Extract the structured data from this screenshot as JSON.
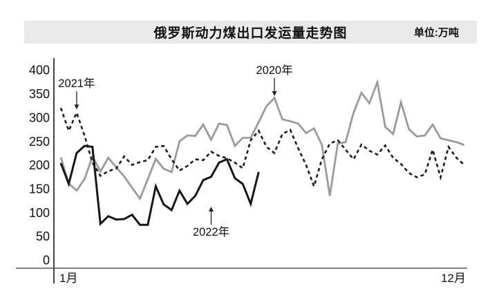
{
  "header": {
    "title": "俄罗斯动力煤出口发运量走势图",
    "unit_label": "单位:万吨"
  },
  "chart_data": {
    "type": "line",
    "title": "俄罗斯动力煤出口发运量走势图",
    "unit": "万吨",
    "x_axis": {
      "start_label": "1月",
      "end_label": "12月",
      "points_per_year": 52,
      "grid": false
    },
    "y_axis": {
      "ticks": [
        400,
        350,
        300,
        250,
        200,
        150,
        100,
        50,
        0
      ],
      "range": [
        0,
        400
      ],
      "grid": false
    },
    "series": [
      {
        "name": "2020年",
        "style": "solid",
        "color": "#9a9a9a",
        "width": 2.8,
        "values": [
          216,
          161,
          146,
          170,
          218,
          186,
          215,
          195,
          176,
          152,
          129,
          170,
          213,
          192,
          185,
          250,
          262,
          261,
          285,
          253,
          287,
          284,
          240,
          257,
          257,
          290,
          324,
          341,
          296,
          292,
          287,
          267,
          277,
          242,
          135,
          245,
          248,
          310,
          352,
          330,
          374,
          280,
          265,
          332,
          275,
          260,
          262,
          285,
          256,
          252,
          248,
          242
        ]
      },
      {
        "name": "2021年",
        "style": "dashed",
        "color": "#1c1c1c",
        "width": 2.6,
        "values": [
          320,
          272,
          310,
          262,
          205,
          177,
          187,
          192,
          218,
          200,
          206,
          210,
          238,
          240,
          212,
          188,
          198,
          212,
          210,
          228,
          219,
          214,
          205,
          193,
          252,
          272,
          238,
          225,
          265,
          274,
          235,
          200,
          155,
          212,
          245,
          252,
          232,
          212,
          243,
          230,
          222,
          241,
          215,
          202,
          183,
          174,
          180,
          232,
          174,
          238,
          215,
          200
        ]
      },
      {
        "name": "2022年",
        "style": "solid",
        "color": "#161616",
        "width": 3,
        "values": [
          204,
          160,
          225,
          240,
          238,
          76,
          92,
          85,
          86,
          95,
          74,
          74,
          155,
          117,
          105,
          146,
          118,
          135,
          168,
          175,
          205,
          212,
          172,
          160,
          118,
          185
        ]
      }
    ],
    "annotations": [
      {
        "label": "2021年",
        "week": 3,
        "tip_value": 317,
        "direction": "down"
      },
      {
        "label": "2020年",
        "week": 28,
        "tip_value": 345,
        "direction": "down"
      },
      {
        "label": "2022年",
        "week": 20,
        "tip_value": 112,
        "direction": "up"
      }
    ]
  }
}
